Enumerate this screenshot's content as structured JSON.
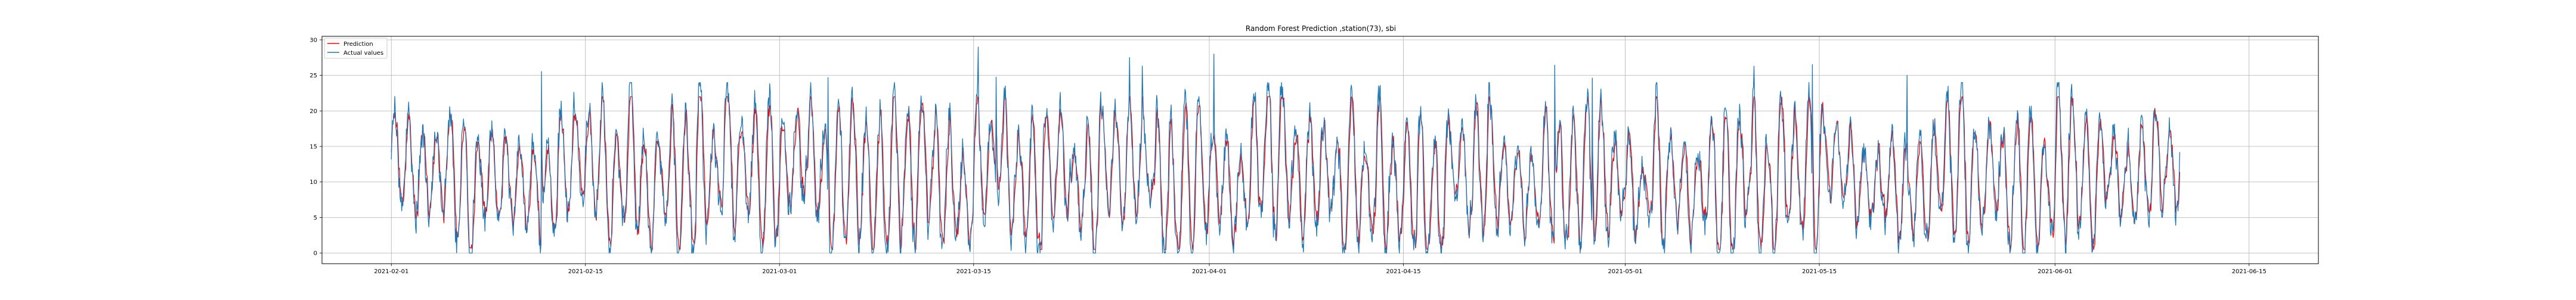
{
  "chart_data": {
    "type": "line",
    "title": "Random Forest Prediction ,station(73), sbi",
    "xlabel": "",
    "ylabel": "",
    "x_start": "2021-02-01",
    "x_end": "2021-06-10",
    "xlim": [
      "2021-01-27",
      "2021-06-20"
    ],
    "ylim": [
      -1.5,
      30.5
    ],
    "x_ticks": [
      "2021-02-01",
      "2021-02-15",
      "2021-03-01",
      "2021-03-15",
      "2021-04-01",
      "2021-04-15",
      "2021-05-01",
      "2021-05-15",
      "2021-06-01",
      "2021-06-15"
    ],
    "y_ticks": [
      0,
      5,
      10,
      15,
      20,
      25,
      30
    ],
    "grid": true,
    "legend_position": "top-left",
    "sampling": "hourly",
    "series": [
      {
        "name": "Prediction",
        "color": "#ff0000",
        "note": "hourly series tracking actual values with small noise"
      },
      {
        "name": "Actual values",
        "color": "#1f77b4",
        "note": "hourly series with daily oscillation between ~0 and ~20-29"
      }
    ],
    "peak_points": [
      {
        "date": "2021-03-15",
        "value": 29
      },
      {
        "date": "2021-04-01",
        "value": 28
      },
      {
        "date": "2021-05-21",
        "value": 25
      }
    ]
  }
}
